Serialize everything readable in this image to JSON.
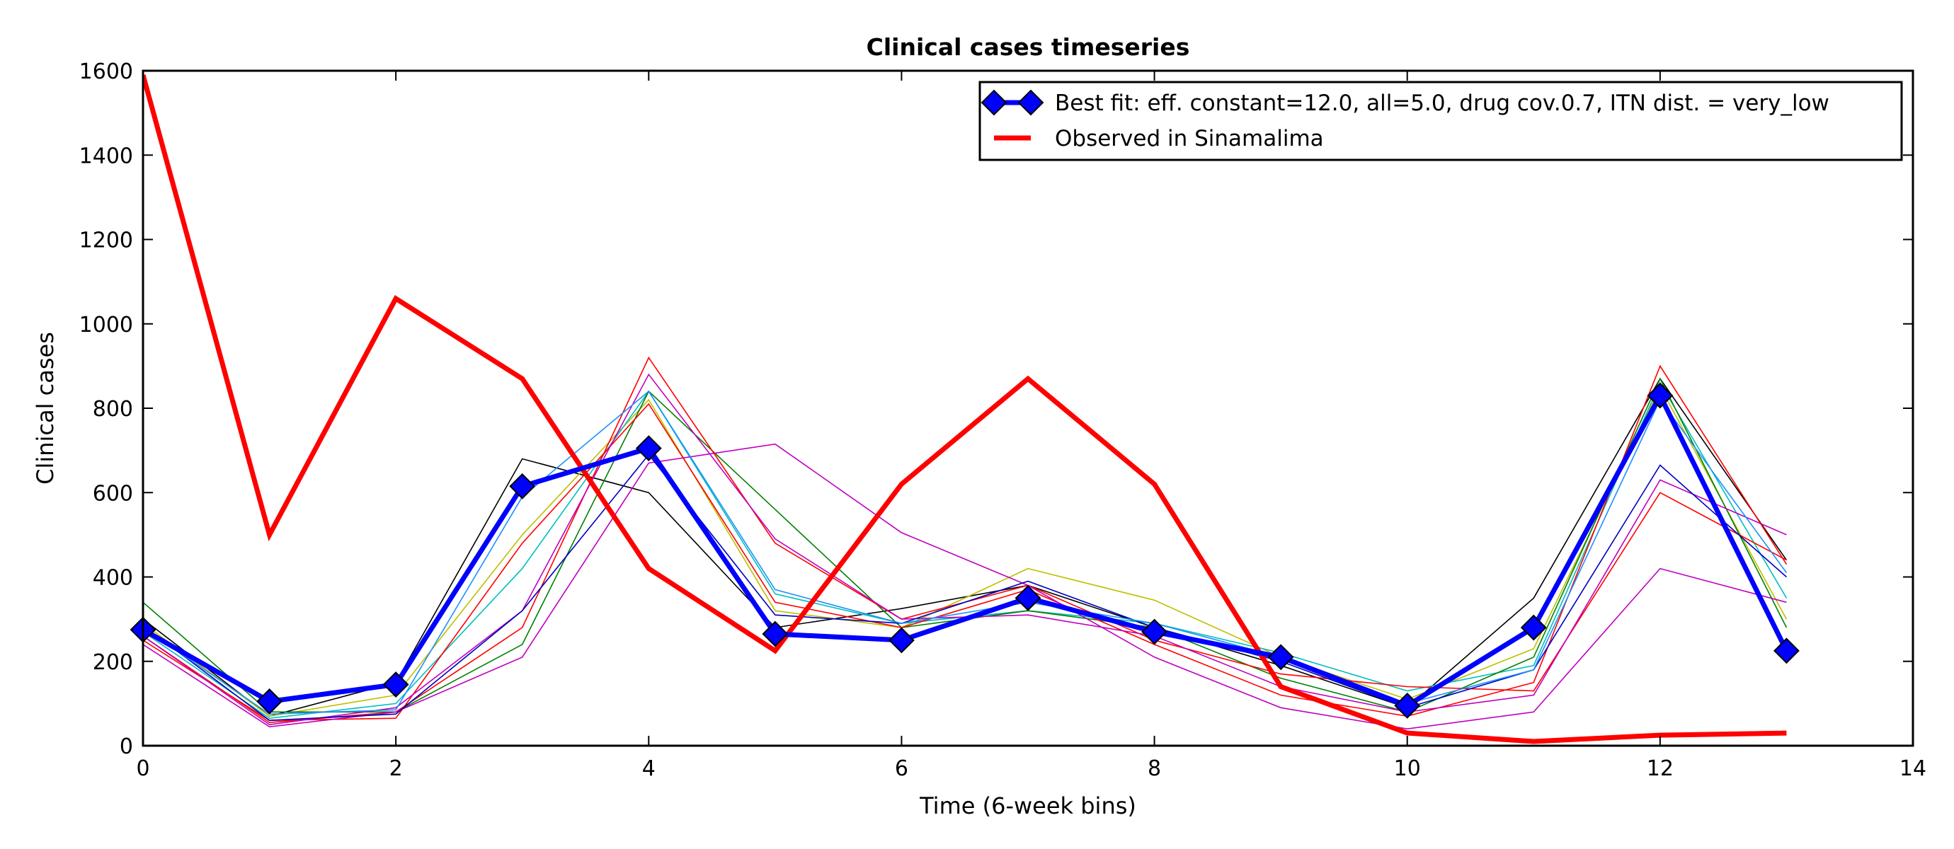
{
  "chart_data": {
    "type": "line",
    "title": "Clinical cases timeseries",
    "xlabel": "Time (6-week bins)",
    "ylabel": "Clinical cases",
    "xlim": [
      0,
      14
    ],
    "ylim": [
      0,
      1600
    ],
    "xticks": [
      0,
      2,
      4,
      6,
      8,
      10,
      12,
      14
    ],
    "yticks": [
      0,
      200,
      400,
      600,
      800,
      1000,
      1200,
      1400,
      1600
    ],
    "grid": false,
    "legend_position": "top-right",
    "x": [
      0,
      1,
      2,
      3,
      4,
      5,
      6,
      7,
      8,
      9,
      10,
      11,
      12,
      13
    ],
    "series": [
      {
        "name": "Best fit: eff. constant=12.0, all=5.0, drug cov.0.7, ITN dist. = very_low",
        "color": "#0000ff",
        "marker": "diamond",
        "values": [
          275,
          105,
          145,
          615,
          705,
          265,
          250,
          350,
          270,
          210,
          95,
          280,
          830,
          225
        ]
      },
      {
        "name": "Observed in Sinamalima",
        "color": "#ff0000",
        "values": [
          1590,
          500,
          1060,
          870,
          420,
          225,
          620,
          870,
          620,
          140,
          30,
          10,
          25,
          30
        ]
      }
    ],
    "background_runs": [
      {
        "color": "#000000",
        "values": [
          300,
          70,
          150,
          680,
          600,
          280,
          325,
          380,
          280,
          190,
          90,
          350,
          870,
          440
        ]
      },
      {
        "color": "#bfbf00",
        "values": [
          290,
          70,
          120,
          500,
          820,
          320,
          280,
          420,
          345,
          210,
          110,
          230,
          850,
          300
        ]
      },
      {
        "color": "#00bfbf",
        "values": [
          270,
          65,
          100,
          420,
          840,
          360,
          290,
          320,
          290,
          220,
          130,
          190,
          860,
          350
        ]
      },
      {
        "color": "#008000",
        "values": [
          340,
          80,
          80,
          240,
          840,
          560,
          280,
          320,
          280,
          160,
          80,
          210,
          870,
          280
        ]
      },
      {
        "color": "#ff0000",
        "values": [
          260,
          55,
          80,
          280,
          920,
          480,
          300,
          380,
          250,
          170,
          140,
          130,
          600,
          440
        ]
      },
      {
        "color": "#ff0000",
        "values": [
          250,
          60,
          65,
          480,
          810,
          340,
          280,
          370,
          240,
          120,
          70,
          150,
          900,
          430
        ]
      },
      {
        "color": "#bf00bf",
        "values": [
          240,
          45,
          80,
          210,
          670,
          715,
          505,
          380,
          210,
          90,
          40,
          80,
          420,
          340
        ]
      },
      {
        "color": "#bf00bf",
        "values": [
          260,
          50,
          90,
          320,
          880,
          490,
          300,
          310,
          260,
          140,
          80,
          120,
          630,
          500
        ]
      },
      {
        "color": "#0000bf",
        "values": [
          285,
          60,
          75,
          320,
          690,
          310,
          290,
          390,
          280,
          200,
          90,
          180,
          665,
          400
        ]
      },
      {
        "color": "#1e90ff",
        "values": [
          280,
          75,
          85,
          590,
          840,
          370,
          290,
          340,
          290,
          210,
          100,
          180,
          820,
          410
        ]
      }
    ]
  }
}
